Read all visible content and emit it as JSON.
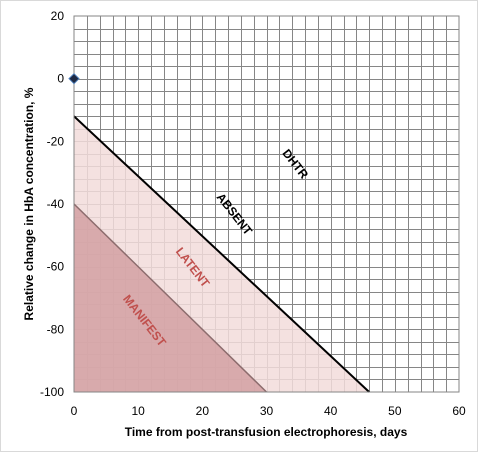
{
  "chart_data": {
    "type": "area",
    "xlabel": "Time from post-transfusion electrophoresis, days",
    "ylabel": "Relative change in HbA concentration, %",
    "xlim": [
      0,
      60
    ],
    "ylim": [
      -100,
      20
    ],
    "x_major_ticks": [
      "0",
      "10",
      "20",
      "30",
      "40",
      "50",
      "60"
    ],
    "y_major_ticks": [
      "20",
      "0",
      "-20",
      "-40",
      "-60",
      "-80",
      "-100"
    ],
    "x_minor_step": 2,
    "y_minor_step": 4,
    "grid": true,
    "legend": "none",
    "series": [
      {
        "name": "",
        "type": "scatter",
        "marker": "diamond",
        "points": [
          [
            0,
            0
          ]
        ]
      }
    ],
    "regions": [
      {
        "label": "MANIFEST",
        "color": "#d2a0a2",
        "text_color": "#c0504d",
        "polygon": [
          [
            0,
            -40
          ],
          [
            30,
            -100
          ],
          [
            0,
            -100
          ]
        ]
      },
      {
        "label": "LATENT",
        "color": "#f2dcdb",
        "text_color": "#c0504d",
        "polygon": [
          [
            0,
            -12
          ],
          [
            46,
            -100
          ],
          [
            0,
            -100
          ]
        ]
      }
    ],
    "lines": [
      {
        "from": [
          0,
          -12
        ],
        "to": [
          46,
          -100
        ],
        "color": "#000000",
        "width": 2
      },
      {
        "from": [
          0,
          -40
        ],
        "to": [
          30,
          -100
        ],
        "color": "#8c6c6d",
        "width": 1.5
      }
    ],
    "annotations": [
      {
        "text": "DHTR",
        "x": 34,
        "y": -28,
        "rotation": 52,
        "color": "#000000"
      },
      {
        "text": "ABSENT",
        "x": 24.5,
        "y": -44,
        "rotation": 52,
        "color": "#000000"
      },
      {
        "text": "LATENT",
        "x": 18,
        "y": -61,
        "rotation": 52,
        "color": "#c0504d"
      },
      {
        "text": "MANIFEST",
        "x": 10.5,
        "y": -78,
        "rotation": 52,
        "color": "#c0504d"
      }
    ]
  }
}
